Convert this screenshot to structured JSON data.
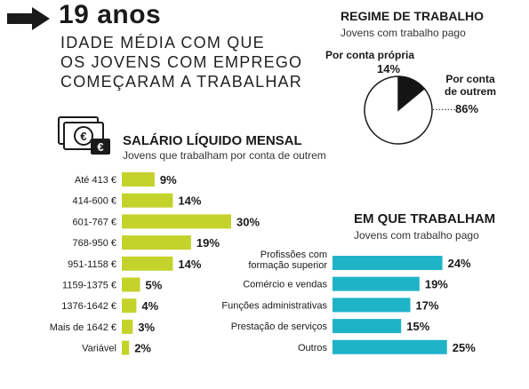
{
  "headline": {
    "value": "19 anos",
    "lines": [
      "IDADE MÉDIA COM QUE",
      "OS JOVENS COM EMPREGO",
      "COMEÇARAM A TRABALHAR"
    ]
  },
  "colors": {
    "salary_bar": "#c3d32c",
    "work_bar": "#1fb3c8",
    "pie_dark": "#141414",
    "text": "#1a1a1a"
  },
  "icons": {
    "arrow": "arrow-right-icon",
    "money": "money-icon"
  },
  "chart_data": [
    {
      "type": "pie",
      "title": "REGIME DE TRABALHO",
      "subtitle": "Jovens com trabalho pago",
      "categories": [
        "Por conta própria",
        "Por conta de outrem"
      ],
      "label_lines": [
        [
          "Por conta própria"
        ],
        [
          "Por conta",
          "de outrem"
        ]
      ],
      "values": [
        14,
        86
      ],
      "value_labels": [
        "14%",
        "86%"
      ]
    },
    {
      "type": "bar",
      "orientation": "horizontal",
      "title": "SALÁRIO LÍQUIDO MENSAL",
      "subtitle": "Jovens que trabalham por conta de outrem",
      "categories": [
        "Até 413 €",
        "414-600 €",
        "601-767 €",
        "768-950 €",
        "951-1158 €",
        "1159-1375 €",
        "1376-1642 €",
        "Mais de 1642 €",
        "Variável"
      ],
      "values": [
        9,
        14,
        30,
        19,
        14,
        5,
        4,
        3,
        2
      ],
      "value_labels": [
        "9%",
        "14%",
        "30%",
        "19%",
        "14%",
        "5%",
        "4%",
        "3%",
        "2%"
      ]
    },
    {
      "type": "bar",
      "orientation": "horizontal",
      "title": "EM QUE TRABALHAM",
      "subtitle": "Jovens com trabalho pago",
      "categories": [
        "Profissões com formação superior",
        "Comércio e vendas",
        "Funções administrativas",
        "Prestação de serviços",
        "Outros"
      ],
      "label_lines": [
        [
          "Profissões com",
          "formação superior"
        ],
        [
          "Comércio e vendas"
        ],
        [
          "Funções administrativas"
        ],
        [
          "Prestação de serviços"
        ],
        [
          "Outros"
        ]
      ],
      "values": [
        24,
        19,
        17,
        15,
        25
      ],
      "value_labels": [
        "24%",
        "19%",
        "17%",
        "15%",
        "25%"
      ]
    }
  ]
}
